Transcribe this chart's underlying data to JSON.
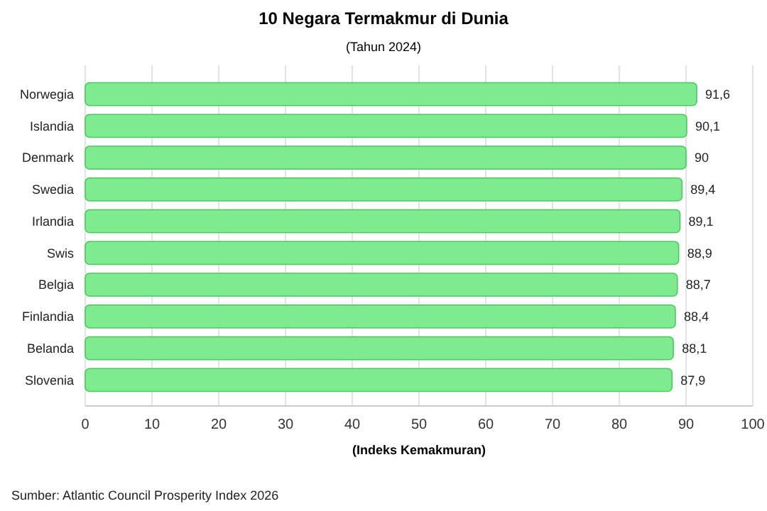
{
  "chart_data": {
    "type": "bar",
    "orientation": "horizontal",
    "title": "10 Negara Termakmur di Dunia",
    "subtitle": "(Tahun 2024)",
    "xlabel": "(Indeks Kemakmuran)",
    "categories": [
      "Norwegia",
      "Islandia",
      "Denmark",
      "Swedia",
      "Irlandia",
      "Swis",
      "Belgia",
      "Finlandia",
      "Belanda",
      "Slovenia"
    ],
    "values": [
      91.6,
      90.1,
      90,
      89.4,
      89.1,
      88.9,
      88.7,
      88.4,
      88.1,
      87.9
    ],
    "value_labels": [
      "91,6",
      "90,1",
      "90",
      "89,4",
      "89,1",
      "88,9",
      "88,7",
      "88,4",
      "88,1",
      "87,9"
    ],
    "color": "#7deb8e",
    "xlim": [
      0,
      100
    ],
    "xticks": [
      0,
      10,
      20,
      30,
      40,
      50,
      60,
      70,
      80,
      90,
      100
    ],
    "grid": "x",
    "annotations": [
      "Sumber: Atlantic Council Prosperity Index 2026"
    ]
  }
}
